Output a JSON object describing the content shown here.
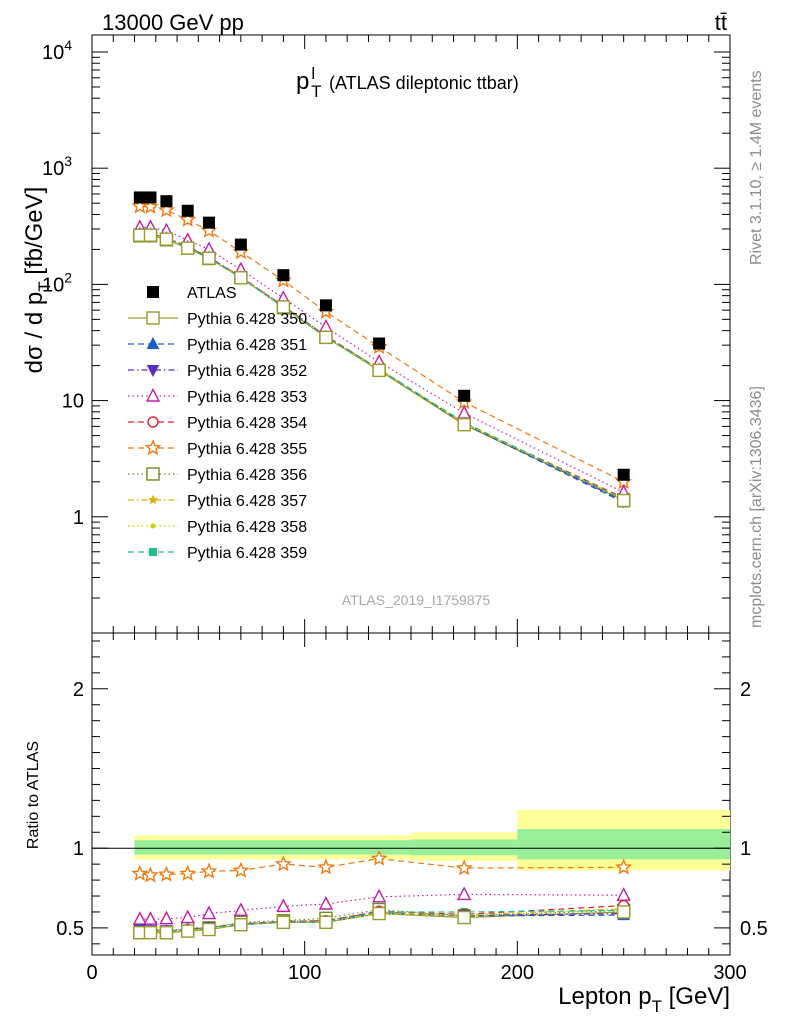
{
  "header": {
    "left": "13000 GeV pp",
    "right": "tt̄"
  },
  "side": {
    "rivet": "Rivet 3.1.10, ≥ 1.4M events",
    "mcplots": "mcplots.cern.ch [arXiv:1306.3436]"
  },
  "watermark": "ATLAS_2019_I1759875",
  "chart_data": [
    {
      "type": "scatter",
      "panel": "main",
      "title": "p_T^l (ATLAS dileptonic ttbar)",
      "ylabel": "dσ / d p_T [fb/GeV]",
      "yscale": "log",
      "xlim": [
        0,
        300
      ],
      "ylim": [
        0.1,
        14000
      ],
      "x": [
        22.5,
        27.5,
        35,
        45,
        55,
        70,
        90,
        110,
        135,
        175,
        250
      ],
      "yticks": [
        "10^4",
        "10^3",
        "10^2",
        "10",
        "1"
      ],
      "legend_position": "left",
      "series": [
        {
          "name": "ATLAS",
          "color": "#000000",
          "marker": "filled-square",
          "line": "none",
          "values": [
            560,
            560,
            520,
            430,
            340,
            220,
            120,
            66,
            31,
            11,
            2.3
          ]
        },
        {
          "name": "Pythia 6.428 350",
          "color": "#9a9a2a",
          "marker": "open-square",
          "line": "solid",
          "values": [
            265,
            265,
            245,
            205,
            168,
            114,
            64,
            35,
            18.2,
            6.2,
            1.38
          ]
        },
        {
          "name": "Pythia 6.428 351",
          "color": "#1a5ec4",
          "marker": "filled-triangle-up",
          "line": "dash",
          "values": [
            272,
            270,
            250,
            210,
            170,
            115,
            64,
            35.5,
            18.5,
            6.3,
            1.33
          ]
        },
        {
          "name": "Pythia 6.428 352",
          "color": "#5b2ec2",
          "marker": "filled-triangle-down",
          "line": "dashdot",
          "values": [
            275,
            272,
            252,
            212,
            172,
            116,
            65,
            36,
            18.6,
            6.4,
            1.36
          ]
        },
        {
          "name": "Pythia 6.428 353",
          "color": "#c21ea8",
          "marker": "open-triangle-up",
          "line": "dot",
          "values": [
            310,
            310,
            290,
            240,
            200,
            134,
            76,
            43,
            21.5,
            7.8,
            1.62
          ]
        },
        {
          "name": "Pythia 6.428 354",
          "color": "#e0202a",
          "marker": "open-circle",
          "line": "dash",
          "values": [
            270,
            268,
            250,
            210,
            170,
            116,
            65,
            36,
            18.7,
            6.4,
            1.45
          ]
        },
        {
          "name": "Pythia 6.428 355",
          "color": "#f07a10",
          "marker": "open-star",
          "line": "dash",
          "values": [
            470,
            465,
            435,
            360,
            290,
            190,
            108,
            58,
            29,
            9.7,
            2.0
          ]
        },
        {
          "name": "Pythia 6.428 356",
          "color": "#6b8e1a",
          "marker": "open-square",
          "line": "dot",
          "values": [
            262,
            262,
            242,
            205,
            167,
            114,
            63,
            35,
            18.3,
            6.3,
            1.4
          ]
        },
        {
          "name": "Pythia 6.428 357",
          "color": "#d9b400",
          "marker": "small-star",
          "line": "dashdot",
          "values": [
            268,
            268,
            247,
            208,
            168,
            115,
            64,
            35.5,
            18.5,
            6.4,
            1.42
          ]
        },
        {
          "name": "Pythia 6.428 358",
          "color": "#c8d400",
          "marker": "small-dot",
          "line": "dot",
          "values": [
            268,
            266,
            246,
            207,
            168,
            114,
            64,
            35.3,
            18.4,
            6.4,
            1.41
          ]
        },
        {
          "name": "Pythia 6.428 359",
          "color": "#1ec08a",
          "marker": "filled-square-small",
          "line": "dash",
          "values": [
            270,
            268,
            248,
            208,
            168,
            114,
            64,
            35.4,
            18.5,
            6.5,
            1.4
          ]
        }
      ]
    },
    {
      "type": "line",
      "panel": "ratio",
      "xlabel": "Lepton p_T [GeV]",
      "ylabel": "Ratio to ATLAS",
      "xlim": [
        0,
        300
      ],
      "ylim": [
        0.33,
        2.35
      ],
      "xticks": [
        0,
        100,
        200,
        300
      ],
      "yticks": [
        0.5,
        1,
        2
      ],
      "bands": [
        {
          "x0": 20,
          "x1": 150,
          "lo_yellow": 0.93,
          "hi_yellow": 1.08,
          "lo_green": 0.96,
          "hi_green": 1.05
        },
        {
          "x0": 150,
          "x1": 200,
          "lo_yellow": 0.92,
          "hi_yellow": 1.1,
          "lo_green": 0.955,
          "hi_green": 1.055
        },
        {
          "x0": 200,
          "x1": 300,
          "lo_yellow": 0.86,
          "hi_yellow": 1.24,
          "lo_green": 0.93,
          "hi_green": 1.12
        }
      ],
      "series": [
        {
          "name": "Pythia 6.428 350",
          "values": [
            0.47,
            0.47,
            0.47,
            0.48,
            0.49,
            0.52,
            0.535,
            0.535,
            0.59,
            0.565,
            0.6
          ]
        },
        {
          "name": "Pythia 6.428 351",
          "values": [
            0.485,
            0.48,
            0.48,
            0.49,
            0.5,
            0.52,
            0.535,
            0.535,
            0.595,
            0.575,
            0.58
          ]
        },
        {
          "name": "Pythia 6.428 352",
          "values": [
            0.49,
            0.485,
            0.485,
            0.49,
            0.505,
            0.525,
            0.54,
            0.545,
            0.6,
            0.58,
            0.59
          ]
        },
        {
          "name": "Pythia 6.428 353",
          "values": [
            0.555,
            0.555,
            0.558,
            0.565,
            0.59,
            0.61,
            0.635,
            0.65,
            0.695,
            0.71,
            0.705
          ]
        },
        {
          "name": "Pythia 6.428 354",
          "values": [
            0.48,
            0.48,
            0.48,
            0.49,
            0.5,
            0.525,
            0.54,
            0.545,
            0.605,
            0.585,
            0.64
          ]
        },
        {
          "name": "Pythia 6.428 355",
          "values": [
            0.84,
            0.83,
            0.835,
            0.84,
            0.855,
            0.86,
            0.9,
            0.88,
            0.935,
            0.875,
            0.88
          ]
        },
        {
          "name": "Pythia 6.428 356",
          "values": [
            0.47,
            0.5,
            0.47,
            0.5,
            0.5,
            0.535,
            0.545,
            0.56,
            0.615,
            0.575,
            0.61
          ]
        },
        {
          "name": "Pythia 6.428 357",
          "values": [
            0.48,
            0.48,
            0.475,
            0.485,
            0.495,
            0.52,
            0.535,
            0.54,
            0.595,
            0.58,
            0.62
          ]
        },
        {
          "name": "Pythia 6.428 358",
          "values": [
            0.48,
            0.475,
            0.475,
            0.485,
            0.495,
            0.52,
            0.535,
            0.535,
            0.59,
            0.58,
            0.615
          ]
        },
        {
          "name": "Pythia 6.428 359",
          "values": [
            0.48,
            0.48,
            0.475,
            0.49,
            0.5,
            0.52,
            0.535,
            0.54,
            0.6,
            0.6,
            0.61
          ]
        }
      ]
    }
  ]
}
